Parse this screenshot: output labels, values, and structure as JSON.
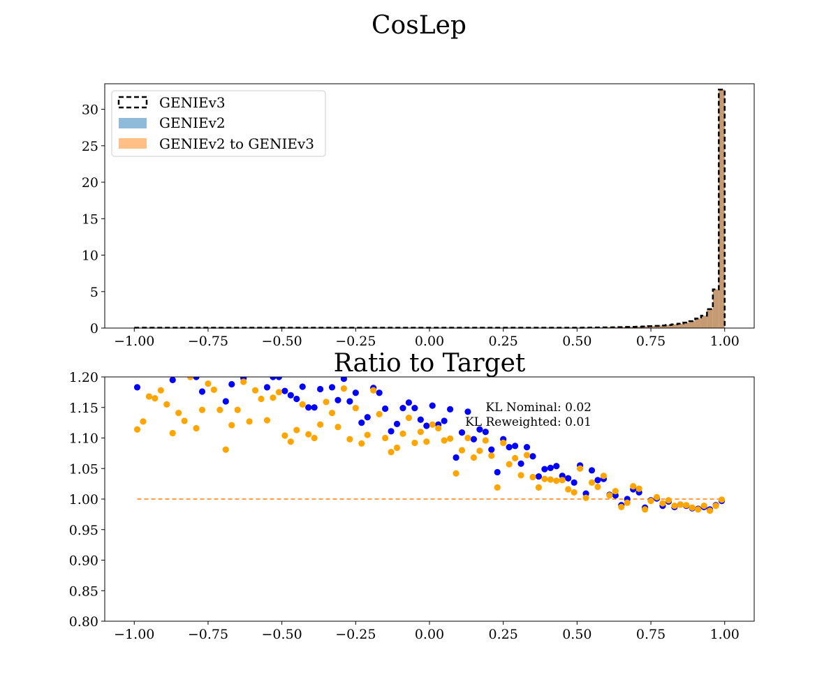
{
  "figure": {
    "suptitle": "CosLep"
  },
  "colors": {
    "target": "#000000",
    "nominal_fill": "#1f77b4",
    "reweighted_fill": "#ff7f0e",
    "nominal_points": "#0000ff",
    "reweighted_points": "#ffa500",
    "reference_line": "#ff7f0e",
    "overlap_fill": "#c69a72"
  },
  "chart_data": [
    {
      "type": "bar",
      "title": "",
      "xlabel": "",
      "ylabel": "",
      "xlim": [
        -1.1,
        1.1
      ],
      "ylim": [
        0,
        33.5
      ],
      "xticks": [
        -1.0,
        -0.75,
        -0.5,
        -0.25,
        0.0,
        0.25,
        0.5,
        0.75,
        1.0
      ],
      "xtick_labels": [
        "−1.00",
        "−0.75",
        "−0.50",
        "−0.25",
        "0.00",
        "0.25",
        "0.50",
        "0.75",
        "1.00"
      ],
      "yticks": [
        0,
        5,
        10,
        15,
        20,
        25,
        30
      ],
      "ytick_labels": [
        "0",
        "5",
        "10",
        "15",
        "20",
        "25",
        "30"
      ],
      "legend": {
        "placement": "top-left",
        "entries": [
          "GENIEv3",
          "GENIEv2",
          "GENIEv2 to GENIEv3"
        ]
      },
      "bin_edges_range": [
        -1.0,
        1.0
      ],
      "tail_bins": [
        {
          "x": [
            0.5,
            0.52
          ],
          "v3": 0.05,
          "v2": 0.05
        },
        {
          "x": [
            0.52,
            0.54
          ],
          "v3": 0.06,
          "v2": 0.06
        },
        {
          "x": [
            0.54,
            0.56
          ],
          "v3": 0.07,
          "v2": 0.07
        },
        {
          "x": [
            0.56,
            0.58
          ],
          "v3": 0.08,
          "v2": 0.08
        },
        {
          "x": [
            0.58,
            0.6
          ],
          "v3": 0.09,
          "v2": 0.09
        },
        {
          "x": [
            0.6,
            0.62
          ],
          "v3": 0.1,
          "v2": 0.1
        },
        {
          "x": [
            0.62,
            0.64
          ],
          "v3": 0.11,
          "v2": 0.11
        },
        {
          "x": [
            0.64,
            0.66
          ],
          "v3": 0.13,
          "v2": 0.13
        },
        {
          "x": [
            0.66,
            0.68
          ],
          "v3": 0.15,
          "v2": 0.15
        },
        {
          "x": [
            0.68,
            0.7
          ],
          "v3": 0.17,
          "v2": 0.17
        },
        {
          "x": [
            0.7,
            0.72
          ],
          "v3": 0.19,
          "v2": 0.19
        },
        {
          "x": [
            0.72,
            0.74
          ],
          "v3": 0.22,
          "v2": 0.22
        },
        {
          "x": [
            0.74,
            0.76
          ],
          "v3": 0.26,
          "v2": 0.26
        },
        {
          "x": [
            0.76,
            0.78
          ],
          "v3": 0.3,
          "v2": 0.3
        },
        {
          "x": [
            0.78,
            0.8
          ],
          "v3": 0.35,
          "v2": 0.35
        },
        {
          "x": [
            0.8,
            0.82
          ],
          "v3": 0.42,
          "v2": 0.42
        },
        {
          "x": [
            0.82,
            0.84
          ],
          "v3": 0.5,
          "v2": 0.5
        },
        {
          "x": [
            0.84,
            0.86
          ],
          "v3": 0.6,
          "v2": 0.6
        },
        {
          "x": [
            0.86,
            0.88
          ],
          "v3": 0.75,
          "v2": 0.75
        },
        {
          "x": [
            0.88,
            0.9
          ],
          "v3": 0.95,
          "v2": 0.95
        },
        {
          "x": [
            0.9,
            0.92
          ],
          "v3": 1.3,
          "v2": 1.3
        },
        {
          "x": [
            0.92,
            0.94
          ],
          "v3": 1.7,
          "v2": 1.7
        },
        {
          "x": [
            0.94,
            0.96
          ],
          "v3": 2.6,
          "v2": 2.6
        },
        {
          "x": [
            0.96,
            0.98
          ],
          "v3": 5.3,
          "v2": 5.3
        },
        {
          "x": [
            0.98,
            1.0
          ],
          "v3": 32.7,
          "v2": 32.7
        }
      ]
    },
    {
      "type": "scatter",
      "title": "Ratio to Target",
      "xlabel": "",
      "ylabel": "",
      "xlim": [
        -1.1,
        1.1
      ],
      "ylim": [
        0.8,
        1.2
      ],
      "xticks": [
        -1.0,
        -0.75,
        -0.5,
        -0.25,
        0.0,
        0.25,
        0.5,
        0.75,
        1.0
      ],
      "xtick_labels": [
        "−1.00",
        "−0.75",
        "−0.50",
        "−0.25",
        "0.00",
        "0.25",
        "0.50",
        "0.75",
        "1.00"
      ],
      "yticks": [
        0.8,
        0.85,
        0.9,
        0.95,
        1.0,
        1.05,
        1.1,
        1.15,
        1.2
      ],
      "ytick_labels": [
        "0.80",
        "0.85",
        "0.90",
        "0.95",
        "1.00",
        "1.05",
        "1.10",
        "1.15",
        "1.20"
      ],
      "reference_y": 1.0,
      "annotations": [
        "KL Nominal: 0.02",
        "KL Reweighted: 0.01"
      ],
      "series": [
        {
          "x": [
            -0.99,
            -0.87,
            -0.79,
            -0.77,
            -0.69,
            -0.67,
            -0.63,
            -0.55,
            -0.53,
            -0.51,
            -0.49,
            -0.47,
            -0.45,
            -0.43,
            -0.41,
            -0.39,
            -0.37,
            -0.33,
            -0.31,
            -0.29,
            -0.27,
            -0.25,
            -0.23,
            -0.21,
            -0.19,
            -0.17,
            -0.15,
            -0.13,
            -0.11,
            -0.09,
            -0.07,
            -0.05,
            -0.03,
            -0.01,
            0.01,
            0.03,
            0.05,
            0.07,
            0.09,
            0.11,
            0.13,
            0.15,
            0.17,
            0.19,
            0.21,
            0.23,
            0.25,
            0.27,
            0.29,
            0.31,
            0.33,
            0.35,
            0.37,
            0.39,
            0.41,
            0.43,
            0.45,
            0.47,
            0.49,
            0.51,
            0.53,
            0.55,
            0.57,
            0.59,
            0.61,
            0.63,
            0.65,
            0.67,
            0.69,
            0.71,
            0.73,
            0.75,
            0.77,
            0.79,
            0.81,
            0.83,
            0.85,
            0.87,
            0.89,
            0.91,
            0.93,
            0.95,
            0.97,
            0.99
          ],
          "y": [
            1.183,
            1.195,
            1.2,
            1.176,
            1.16,
            1.188,
            1.198,
            1.183,
            1.2,
            1.2,
            1.177,
            1.17,
            1.164,
            1.184,
            1.15,
            1.15,
            1.18,
            1.183,
            1.162,
            1.197,
            1.16,
            1.174,
            1.125,
            1.134,
            1.182,
            1.174,
            1.148,
            1.111,
            1.123,
            1.149,
            1.158,
            1.149,
            1.13,
            1.12,
            1.153,
            1.122,
            1.128,
            1.147,
            1.068,
            1.109,
            1.143,
            1.098,
            1.114,
            1.11,
            1.081,
            1.044,
            1.098,
            1.085,
            1.087,
            1.058,
            1.085,
            1.07,
            1.037,
            1.049,
            1.051,
            1.054,
            1.038,
            1.034,
            1.027,
            1.055,
            1.009,
            1.047,
            1.031,
            1.033,
            1.007,
            1.006,
            0.99,
            1.0,
            1.016,
            1.011,
            0.986,
            0.998,
            1.001,
            0.989,
            0.996,
            0.987,
            0.991,
            0.989,
            0.985,
            0.984,
            0.987,
            0.983,
            0.99,
            0.997
          ]
        },
        {
          "x": [
            -0.99,
            -0.97,
            -0.95,
            -0.93,
            -0.91,
            -0.89,
            -0.87,
            -0.85,
            -0.83,
            -0.81,
            -0.79,
            -0.77,
            -0.75,
            -0.73,
            -0.71,
            -0.69,
            -0.67,
            -0.65,
            -0.63,
            -0.61,
            -0.59,
            -0.57,
            -0.55,
            -0.53,
            -0.51,
            -0.49,
            -0.47,
            -0.45,
            -0.43,
            -0.41,
            -0.39,
            -0.37,
            -0.35,
            -0.33,
            -0.31,
            -0.29,
            -0.27,
            -0.25,
            -0.23,
            -0.21,
            -0.19,
            -0.17,
            -0.15,
            -0.13,
            -0.11,
            -0.09,
            -0.07,
            -0.05,
            -0.03,
            -0.01,
            0.01,
            0.03,
            0.05,
            0.07,
            0.09,
            0.11,
            0.13,
            0.15,
            0.17,
            0.19,
            0.21,
            0.23,
            0.25,
            0.27,
            0.29,
            0.31,
            0.33,
            0.35,
            0.37,
            0.39,
            0.41,
            0.43,
            0.45,
            0.47,
            0.49,
            0.51,
            0.53,
            0.55,
            0.57,
            0.59,
            0.61,
            0.63,
            0.65,
            0.67,
            0.69,
            0.71,
            0.73,
            0.75,
            0.77,
            0.79,
            0.81,
            0.83,
            0.85,
            0.87,
            0.89,
            0.91,
            0.93,
            0.95,
            0.97,
            0.99
          ],
          "y": [
            1.114,
            1.127,
            1.168,
            1.165,
            1.178,
            1.155,
            1.108,
            1.141,
            1.128,
            1.2,
            1.116,
            1.146,
            1.189,
            1.179,
            1.146,
            1.081,
            1.121,
            1.146,
            1.192,
            1.127,
            1.178,
            1.164,
            1.129,
            1.166,
            1.175,
            1.104,
            1.094,
            1.113,
            1.155,
            1.106,
            1.1,
            1.122,
            1.159,
            1.141,
            1.118,
            1.181,
            1.098,
            1.149,
            1.091,
            1.105,
            1.178,
            1.139,
            1.1,
            1.077,
            1.084,
            1.107,
            1.133,
            1.092,
            1.11,
            1.094,
            1.122,
            1.116,
            1.096,
            1.099,
            1.042,
            1.08,
            1.1,
            1.068,
            1.079,
            1.096,
            1.071,
            1.019,
            1.092,
            1.057,
            1.067,
            1.039,
            1.072,
            1.036,
            1.019,
            1.033,
            1.032,
            1.03,
            1.031,
            1.016,
            1.011,
            1.05,
            1.002,
            1.027,
            1.02,
            1.038,
            1.006,
            1.013,
            0.987,
            0.994,
            1.021,
            1.017,
            0.983,
            0.997,
            1.003,
            0.993,
            0.998,
            0.989,
            0.991,
            0.99,
            0.986,
            0.983,
            0.989,
            0.981,
            0.989,
            0.999
          ]
        }
      ]
    }
  ]
}
